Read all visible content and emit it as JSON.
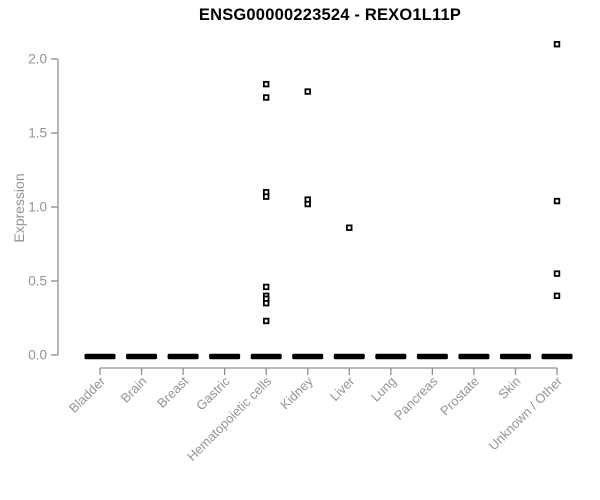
{
  "title": "ENSG00000223524 - REXO1L11P",
  "chart_data": {
    "type": "scatter",
    "subtype": "strip-plot",
    "title": "ENSG00000223524 - REXO1L11P",
    "ylabel": "Expression",
    "xlabel": "",
    "ylim": [
      0,
      2.15
    ],
    "yticks": [
      0,
      0.5,
      1,
      1.5,
      2
    ],
    "grid": false,
    "legend": "none",
    "marker": "open-square",
    "categories": [
      "Bladder",
      "Brain",
      "Breast",
      "Gastric",
      "Hematopoietic cells",
      "Kidney",
      "Liver",
      "Lung",
      "Pancreas",
      "Prostate",
      "Skin",
      "Unknown / Other"
    ],
    "series": [
      {
        "category": "Bladder",
        "zero_cluster": true,
        "values": []
      },
      {
        "category": "Brain",
        "zero_cluster": true,
        "values": []
      },
      {
        "category": "Breast",
        "zero_cluster": true,
        "values": []
      },
      {
        "category": "Gastric",
        "zero_cluster": true,
        "values": []
      },
      {
        "category": "Hematopoietic cells",
        "zero_cluster": true,
        "values": [
          1.83,
          1.74,
          1.1,
          1.07,
          0.46,
          0.4,
          0.38,
          0.35,
          0.23
        ]
      },
      {
        "category": "Kidney",
        "zero_cluster": true,
        "values": [
          1.78,
          1.05,
          1.02
        ]
      },
      {
        "category": "Liver",
        "zero_cluster": true,
        "values": [
          0.86
        ]
      },
      {
        "category": "Lung",
        "zero_cluster": true,
        "values": []
      },
      {
        "category": "Pancreas",
        "zero_cluster": true,
        "values": []
      },
      {
        "category": "Prostate",
        "zero_cluster": true,
        "values": []
      },
      {
        "category": "Skin",
        "zero_cluster": true,
        "values": []
      },
      {
        "category": "Unknown / Other",
        "zero_cluster": true,
        "values": [
          2.1,
          1.04,
          0.55,
          0.4
        ]
      }
    ],
    "colors": {
      "marker": "#000000",
      "zero_cluster": "#000000",
      "axis_line": "#8f8f8f",
      "tick_text": "#949494",
      "title_text": "#000000",
      "background": "#ffffff"
    }
  }
}
